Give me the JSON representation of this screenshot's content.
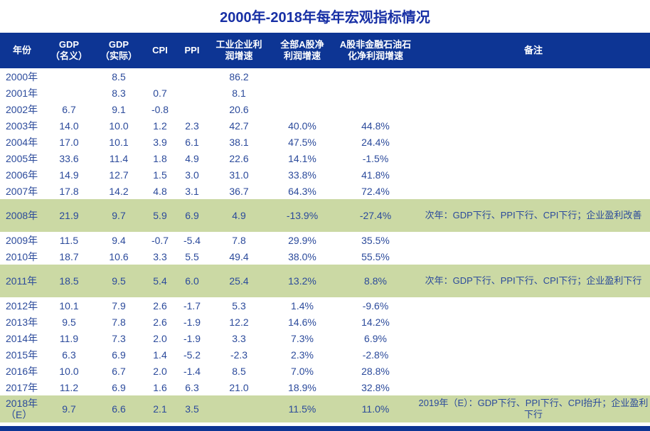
{
  "title": "2000年-2018年每年宏观指标情况",
  "colors": {
    "title_text": "#1830a5",
    "header_bg": "#0d3594",
    "header_text": "#ffffff",
    "cell_text": "#2b4a9b",
    "highlight_bg": "#cbd9a4",
    "bottom_bar": "#0d3594"
  },
  "chart_data": {
    "type": "table",
    "title": "2000年-2018年每年宏观指标情况",
    "columns": [
      "年份",
      "GDP\n（名义）",
      "GDP\n（实际）",
      "CPI",
      "PPI",
      "工业企业利\n润增速",
      "全部A股净\n利润增速",
      "A股非金融石油石\n化净利润增速",
      "备注"
    ],
    "rows": [
      {
        "year": "2000年",
        "gdp_nominal": "",
        "gdp_real": "8.5",
        "cpi": "",
        "ppi": "",
        "industrial_profit_growth": "86.2",
        "a_share_profit_growth": "",
        "a_share_nonfin_profit_growth": "",
        "note": "",
        "highlight": false
      },
      {
        "year": "2001年",
        "gdp_nominal": "",
        "gdp_real": "8.3",
        "cpi": "0.7",
        "ppi": "",
        "industrial_profit_growth": "8.1",
        "a_share_profit_growth": "",
        "a_share_nonfin_profit_growth": "",
        "note": "",
        "highlight": false
      },
      {
        "year": "2002年",
        "gdp_nominal": "6.7",
        "gdp_real": "9.1",
        "cpi": "-0.8",
        "ppi": "",
        "industrial_profit_growth": "20.6",
        "a_share_profit_growth": "",
        "a_share_nonfin_profit_growth": "",
        "note": "",
        "highlight": false
      },
      {
        "year": "2003年",
        "gdp_nominal": "14.0",
        "gdp_real": "10.0",
        "cpi": "1.2",
        "ppi": "2.3",
        "industrial_profit_growth": "42.7",
        "a_share_profit_growth": "40.0%",
        "a_share_nonfin_profit_growth": "44.8%",
        "note": "",
        "highlight": false
      },
      {
        "year": "2004年",
        "gdp_nominal": "17.0",
        "gdp_real": "10.1",
        "cpi": "3.9",
        "ppi": "6.1",
        "industrial_profit_growth": "38.1",
        "a_share_profit_growth": "47.5%",
        "a_share_nonfin_profit_growth": "24.4%",
        "note": "",
        "highlight": false
      },
      {
        "year": "2005年",
        "gdp_nominal": "33.6",
        "gdp_real": "11.4",
        "cpi": "1.8",
        "ppi": "4.9",
        "industrial_profit_growth": "22.6",
        "a_share_profit_growth": "14.1%",
        "a_share_nonfin_profit_growth": "-1.5%",
        "note": "",
        "highlight": false
      },
      {
        "year": "2006年",
        "gdp_nominal": "14.9",
        "gdp_real": "12.7",
        "cpi": "1.5",
        "ppi": "3.0",
        "industrial_profit_growth": "31.0",
        "a_share_profit_growth": "33.8%",
        "a_share_nonfin_profit_growth": "41.8%",
        "note": "",
        "highlight": false
      },
      {
        "year": "2007年",
        "gdp_nominal": "17.8",
        "gdp_real": "14.2",
        "cpi": "4.8",
        "ppi": "3.1",
        "industrial_profit_growth": "36.7",
        "a_share_profit_growth": "64.3%",
        "a_share_nonfin_profit_growth": "72.4%",
        "note": "",
        "highlight": false
      },
      {
        "year": "2008年",
        "gdp_nominal": "21.9",
        "gdp_real": "9.7",
        "cpi": "5.9",
        "ppi": "6.9",
        "industrial_profit_growth": "4.9",
        "a_share_profit_growth": "-13.9%",
        "a_share_nonfin_profit_growth": "-27.4%",
        "note": "次年：GDP下行、PPI下行、CPI下行；企业盈利改善",
        "highlight": true
      },
      {
        "year": "2009年",
        "gdp_nominal": "11.5",
        "gdp_real": "9.4",
        "cpi": "-0.7",
        "ppi": "-5.4",
        "industrial_profit_growth": "7.8",
        "a_share_profit_growth": "29.9%",
        "a_share_nonfin_profit_growth": "35.5%",
        "note": "",
        "highlight": false
      },
      {
        "year": "2010年",
        "gdp_nominal": "18.7",
        "gdp_real": "10.6",
        "cpi": "3.3",
        "ppi": "5.5",
        "industrial_profit_growth": "49.4",
        "a_share_profit_growth": "38.0%",
        "a_share_nonfin_profit_growth": "55.5%",
        "note": "",
        "highlight": false
      },
      {
        "year": "2011年",
        "gdp_nominal": "18.5",
        "gdp_real": "9.5",
        "cpi": "5.4",
        "ppi": "6.0",
        "industrial_profit_growth": "25.4",
        "a_share_profit_growth": "13.2%",
        "a_share_nonfin_profit_growth": "8.8%",
        "note": "次年：GDP下行、PPI下行、CPI下行；企业盈利下行",
        "highlight": true
      },
      {
        "year": "2012年",
        "gdp_nominal": "10.1",
        "gdp_real": "7.9",
        "cpi": "2.6",
        "ppi": "-1.7",
        "industrial_profit_growth": "5.3",
        "a_share_profit_growth": "1.4%",
        "a_share_nonfin_profit_growth": "-9.6%",
        "note": "",
        "highlight": false
      },
      {
        "year": "2013年",
        "gdp_nominal": "9.5",
        "gdp_real": "7.8",
        "cpi": "2.6",
        "ppi": "-1.9",
        "industrial_profit_growth": "12.2",
        "a_share_profit_growth": "14.6%",
        "a_share_nonfin_profit_growth": "14.2%",
        "note": "",
        "highlight": false
      },
      {
        "year": "2014年",
        "gdp_nominal": "11.9",
        "gdp_real": "7.3",
        "cpi": "2.0",
        "ppi": "-1.9",
        "industrial_profit_growth": "3.3",
        "a_share_profit_growth": "7.3%",
        "a_share_nonfin_profit_growth": "6.9%",
        "note": "",
        "highlight": false
      },
      {
        "year": "2015年",
        "gdp_nominal": "6.3",
        "gdp_real": "6.9",
        "cpi": "1.4",
        "ppi": "-5.2",
        "industrial_profit_growth": "-2.3",
        "a_share_profit_growth": "2.3%",
        "a_share_nonfin_profit_growth": "-2.8%",
        "note": "",
        "highlight": false
      },
      {
        "year": "2016年",
        "gdp_nominal": "10.0",
        "gdp_real": "6.7",
        "cpi": "2.0",
        "ppi": "-1.4",
        "industrial_profit_growth": "8.5",
        "a_share_profit_growth": "7.0%",
        "a_share_nonfin_profit_growth": "28.8%",
        "note": "",
        "highlight": false
      },
      {
        "year": "2017年",
        "gdp_nominal": "11.2",
        "gdp_real": "6.9",
        "cpi": "1.6",
        "ppi": "6.3",
        "industrial_profit_growth": "21.0",
        "a_share_profit_growth": "18.9%",
        "a_share_nonfin_profit_growth": "32.8%",
        "note": "",
        "highlight": false
      },
      {
        "year": "2018年（E）",
        "gdp_nominal": "9.7",
        "gdp_real": "6.6",
        "cpi": "2.1",
        "ppi": "3.5",
        "industrial_profit_growth": "",
        "a_share_profit_growth": "11.5%",
        "a_share_nonfin_profit_growth": "11.0%",
        "note": "2019年（E）：GDP下行、PPI下行、CPI抬升；企业盈利下行",
        "highlight": true
      }
    ]
  }
}
